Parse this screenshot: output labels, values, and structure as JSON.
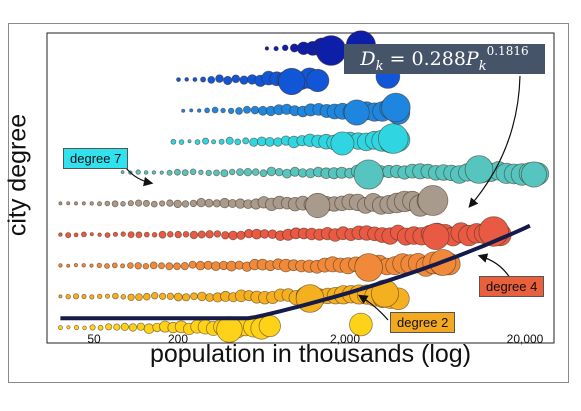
{
  "chart_data": {
    "type": "scatter",
    "title": "",
    "xlabel": "population in thousands (log)",
    "ylabel": "city degree",
    "x_scale": "log",
    "xlim": [
      25,
      25000
    ],
    "ylim": [
      0.5,
      10.5
    ],
    "xticks": [
      50,
      200,
      2000,
      20000
    ],
    "xtick_labels": [
      "50",
      "200",
      "2,000",
      "20,000"
    ],
    "grid": false,
    "colors": {
      "1": "#ffd21a",
      "2": "#f5b020",
      "3": "#f08a3a",
      "4": "#e85a44",
      "5": "#a89a8c",
      "6": "#56c4bf",
      "7": "#2fd6e2",
      "8": "#1f86e0",
      "9": "#1256d8",
      "10": "#0d1ea8"
    },
    "rows": [
      {
        "degree": 1,
        "x_min": 30,
        "x_max": 520,
        "x_large": [
          300,
          1800
        ],
        "x_extra": [
          null,
          1700
        ]
      },
      {
        "degree": 2,
        "x_min": 30,
        "x_max": 3000,
        "x_large": [
          900,
          2500
        ]
      },
      {
        "degree": 3,
        "x_min": 30,
        "x_max": 6000,
        "x_large": [
          2000,
          5500
        ]
      },
      {
        "degree": 4,
        "x_min": 30,
        "x_max": 12000,
        "x_large": [
          5000,
          11000
        ]
      },
      {
        "degree": 5,
        "x_min": 30,
        "x_max": 5000,
        "x_large": [
          1000,
          4800
        ]
      },
      {
        "degree": 6,
        "x_min": 70,
        "x_max": 20000,
        "x_large": [
          2000,
          9000,
          19000
        ]
      },
      {
        "degree": 7,
        "x_min": 140,
        "x_max": 3000,
        "x_large": [
          1400,
          2800
        ]
      },
      {
        "degree": 8,
        "x_min": 160,
        "x_max": 3000,
        "x_large": [
          1700,
          2900
        ]
      },
      {
        "degree": 9,
        "x_min": 150,
        "x_max": 1000,
        "x_large": [
          700,
          2600
        ]
      },
      {
        "degree": 10,
        "x_min": 500,
        "x_max": 1200,
        "x_large": [
          1200,
          1800
        ]
      }
    ],
    "fit": {
      "formula": "D_k = 0.288 P_k^0.1816",
      "a": 0.288,
      "b": 0.1816,
      "x_range": [
        30,
        18000
      ]
    },
    "annotations": [
      {
        "text": "degree 7",
        "target_degree": 7
      },
      {
        "text": "degree 4",
        "target_degree": 4
      },
      {
        "text": "degree 2",
        "target_degree": 2
      }
    ]
  },
  "formula_label": "D_k = 0.288P_k^0.1816"
}
